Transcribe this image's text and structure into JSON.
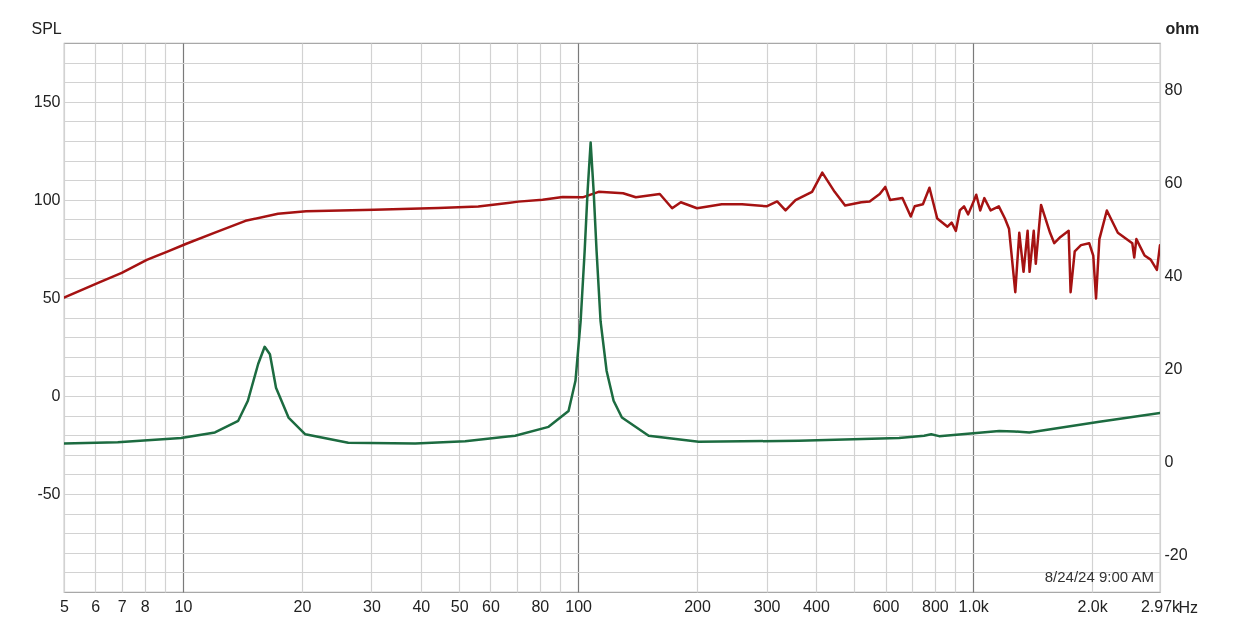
{
  "chart_data": {
    "type": "line",
    "ylabel": "SPL",
    "y2label": "ohm",
    "xlabel": "Hz",
    "log": "x",
    "grid": true,
    "legend": false,
    "annotations": [
      "8/24/24 9:00 AM"
    ],
    "xlim": [
      5,
      2970
    ],
    "xticks": [
      5,
      6,
      7,
      8,
      {
        "value": 9,
        "label": null
      },
      10,
      20,
      30,
      40,
      50,
      60,
      {
        "value": 70,
        "label": null
      },
      80,
      {
        "value": 90,
        "label": null
      },
      100,
      200,
      300,
      400,
      {
        "value": 500,
        "label": null
      },
      600,
      {
        "value": 700,
        "label": null
      },
      800,
      {
        "value": 900,
        "label": null
      },
      {
        "value": 1000,
        "label": "1.0k"
      },
      {
        "value": 2000,
        "label": "2.0k"
      },
      {
        "value": 2970,
        "label": "2.97k"
      }
    ],
    "ylim": [
      -100,
      180
    ],
    "yticks": [
      {
        "value": -90,
        "label": null
      },
      {
        "value": -80,
        "label": null
      },
      {
        "value": -70,
        "label": null
      },
      {
        "value": -60,
        "label": null
      },
      -50,
      {
        "value": -40,
        "label": null
      },
      {
        "value": -30,
        "label": null
      },
      {
        "value": -20,
        "label": null
      },
      {
        "value": -10,
        "label": null
      },
      0,
      {
        "value": 10,
        "label": null
      },
      {
        "value": 20,
        "label": null
      },
      {
        "value": 30,
        "label": null
      },
      {
        "value": 40,
        "label": null
      },
      50,
      {
        "value": 60,
        "label": null
      },
      {
        "value": 70,
        "label": null
      },
      {
        "value": 80,
        "label": null
      },
      {
        "value": 90,
        "label": null
      },
      100,
      {
        "value": 110,
        "label": null
      },
      {
        "value": 120,
        "label": null
      },
      {
        "value": 130,
        "label": null
      },
      {
        "value": 140,
        "label": null
      },
      150,
      {
        "value": 160,
        "label": null
      },
      {
        "value": 170,
        "label": null
      }
    ],
    "y2lim": [
      -28,
      90
    ],
    "y2ticks": [
      -20,
      0,
      20,
      40,
      60,
      80
    ],
    "series": [
      {
        "color": "#a51212",
        "axis": "y",
        "x": [
          5,
          6.1,
          7,
          8.1,
          9.1,
          10.2,
          12,
          14.4,
          17.4,
          20.5,
          30.5,
          44.3,
          55.9,
          70.6,
          81.3,
          91.4,
          102.7,
          112.7,
          130,
          140,
          161,
          173,
          182,
          200,
          231,
          260,
          300,
          319,
          335,
          355,
          391,
          415,
          446,
          474,
          521,
          547,
          580,
          599,
          616,
          662,
          695,
          711,
          746,
          775,
          811,
          861,
          882,
          904,
          925,
          948,
          971,
          1006,
          1018,
          1042,
          1067,
          1107,
          1161,
          1203,
          1232,
          1278,
          1308,
          1341,
          1373,
          1389,
          1423,
          1440,
          1485,
          1565,
          1604,
          1663,
          1744,
          1764,
          1807,
          1874,
          1966,
          2013,
          2046,
          2086,
          2179,
          2323,
          2527,
          2556,
          2588,
          2715,
          2813,
          2917,
          2970
        ],
        "values": [
          50.1,
          57.7,
          62.8,
          69.4,
          73.5,
          77.6,
          83.2,
          89.3,
          92.9,
          94.2,
          95.0,
          95.9,
          96.6,
          99.1,
          100.0,
          101.5,
          101.3,
          104.1,
          103.4,
          101.3,
          103.0,
          95.7,
          98.8,
          95.7,
          97.8,
          97.8,
          96.7,
          99.2,
          94.6,
          99.9,
          104.1,
          113.9,
          104.1,
          97.1,
          98.8,
          99.2,
          103.0,
          106.6,
          99.9,
          100.9,
          91.5,
          96.7,
          97.8,
          106.2,
          90.5,
          86.3,
          88.4,
          84.2,
          94.6,
          96.7,
          92.6,
          99.9,
          102.6,
          94.6,
          100.9,
          94.6,
          96.7,
          90.5,
          85.3,
          52.9,
          83.2,
          63.3,
          84.2,
          63.3,
          84.2,
          67.4,
          97.4,
          83.2,
          77.9,
          81.1,
          84.2,
          52.9,
          73.7,
          76.9,
          77.9,
          71.6,
          49.7,
          80.0,
          94.6,
          83.2,
          77.9,
          70.6,
          80.0,
          71.6,
          69.5,
          64.3,
          76.9
        ]
      },
      {
        "color": "#1c6b40",
        "axis": "y2",
        "x": [
          5,
          6.84,
          9.9,
          12.05,
          13.8,
          14.6,
          15.5,
          16.1,
          16.6,
          17.2,
          18.5,
          20.4,
          26.2,
          38.7,
          51.8,
          69.3,
          84.2,
          94.6,
          98.5,
          101.5,
          103.9,
          105.7,
          107.6,
          109.5,
          111.4,
          114,
          118.1,
          123,
          129.1,
          150.9,
          202,
          362,
          649,
          751,
          783,
          820,
          1164,
          1270,
          1387,
          2086,
          2970
        ],
        "values": [
          3.9,
          4.2,
          5.1,
          6.3,
          8.8,
          13.1,
          21.0,
          24.7,
          23.1,
          15.9,
          9.5,
          5.9,
          4.1,
          3.9,
          4.4,
          5.6,
          7.5,
          10.9,
          17.4,
          30.2,
          45.2,
          58.1,
          68.6,
          58.1,
          45.2,
          30.2,
          19.5,
          13.1,
          9.5,
          5.6,
          4.3,
          4.5,
          5.1,
          5.6,
          5.9,
          5.5,
          6.6,
          6.5,
          6.3,
          8.6,
          10.5
        ]
      }
    ]
  }
}
